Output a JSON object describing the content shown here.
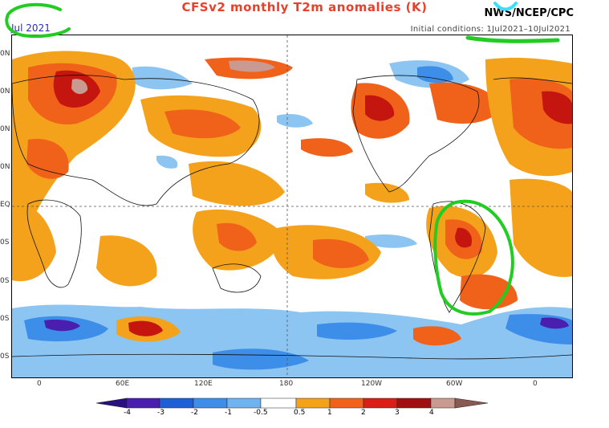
{
  "header": {
    "title": "CFSv2 monthly T2m anomalies (K)",
    "agency": "NWS/NCEP/CPC",
    "month": "Jul 2021",
    "initial_conditions": "Initial conditions: 1Jul2021–10Jul2021"
  },
  "axes": {
    "lat_labels": [
      "0N",
      "0N",
      "0N",
      "0N",
      "EQ",
      "0S",
      "0S",
      "0S",
      "0S"
    ],
    "lon_labels": [
      "0",
      "60E",
      "120E",
      "180",
      "120W",
      "60W",
      "0"
    ]
  },
  "colorbar": {
    "ticks": [
      "-4",
      "-3",
      "-2",
      "-1",
      "-0.5",
      "0.5",
      "1",
      "2",
      "3",
      "4"
    ],
    "colors": [
      "#4a1fb0",
      "#1f5fd6",
      "#3d8ee8",
      "#6fb4f0",
      "#ffffff",
      "#f4a21c",
      "#f0621a",
      "#d81e16",
      "#a01010",
      "#c99a92"
    ]
  },
  "colors": {
    "ocean_blank": "#ffffff",
    "warm_light": "#f4a21c",
    "warm_mid": "#f0621a",
    "warm_high": "#c4160f",
    "warm_extreme": "#c99a92",
    "cold_light": "#8cc4f2",
    "cold_mid": "#3d8ee8",
    "cold_strong": "#4a1fb0",
    "annotation": "#22cc22",
    "annotation_alt": "#38e0ff"
  }
}
